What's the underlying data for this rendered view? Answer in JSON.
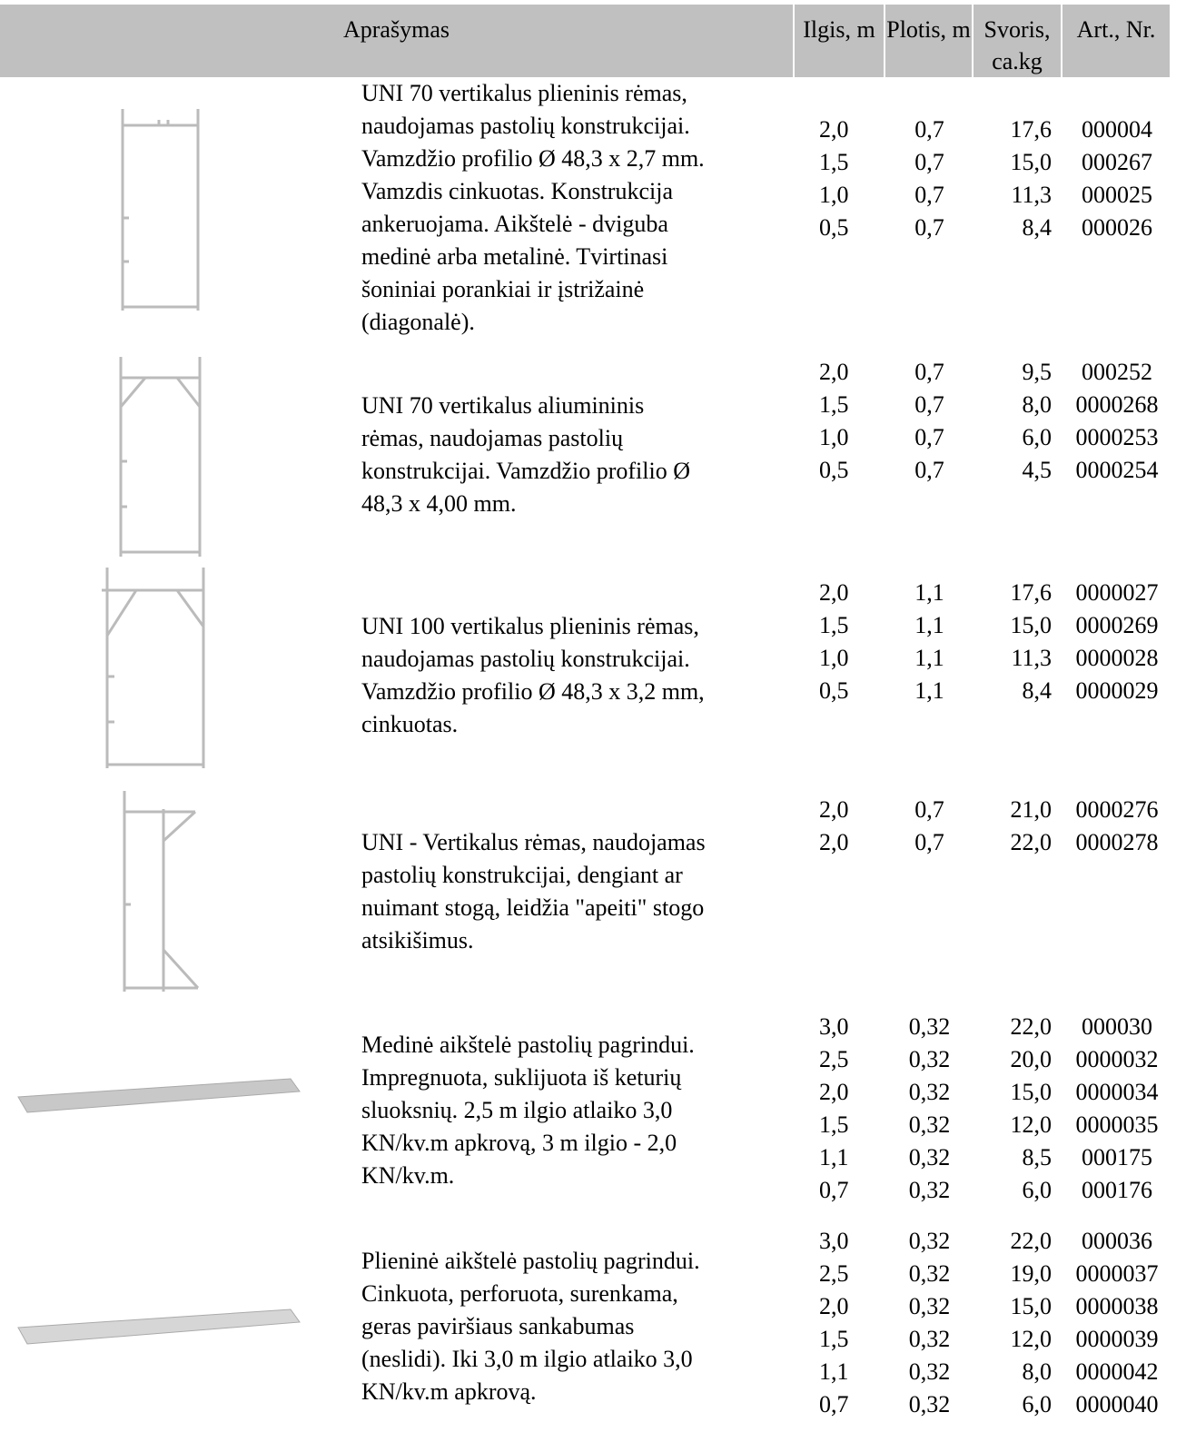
{
  "header": {
    "columns": [
      "Aprašymas",
      "Ilgis, m",
      "Plotis, m",
      "Svoris, ca.kg",
      "Art., Nr."
    ]
  },
  "rows": [
    {
      "description": [
        "UNI 70 vertikalus plieninis rėmas,",
        "naudojamas pastolių konstrukcijai.",
        "Vamzdžio profilio Ø 48,3 x 2,7 mm.",
        "Vamzdis cinkuotas. Konstrukcija",
        "ankeruojama. Aikštelė - dviguba",
        "medinė arba metalinė. Tvirtinasi",
        "šoniniai porankiai ir įstrižainė",
        "(diagonalė)."
      ],
      "items": [
        [
          "2,0",
          "0,7",
          "17,6",
          "000004"
        ],
        [
          "1,5",
          "0,7",
          "15,0",
          "000267"
        ],
        [
          "1,0",
          "0,7",
          "11,3",
          "000025"
        ],
        [
          "0,5",
          "0,7",
          "8,4",
          "000026"
        ]
      ]
    },
    {
      "description": [
        "UNI 70 vertikalus aliumininis",
        "rėmas, naudojamas pastolių",
        "konstrukcijai. Vamzdžio profilio Ø",
        "48,3 x 4,00 mm."
      ],
      "items": [
        [
          "2,0",
          "0,7",
          "9,5",
          "000252"
        ],
        [
          "1,5",
          "0,7",
          "8,0",
          "0000268"
        ],
        [
          "1,0",
          "0,7",
          "6,0",
          "0000253"
        ],
        [
          "0,5",
          "0,7",
          "4,5",
          "0000254"
        ]
      ]
    },
    {
      "description": [
        "UNI 100 vertikalus plieninis rėmas,",
        "naudojamas pastolių konstrukcijai.",
        "Vamzdžio profilio Ø 48,3 x 3,2 mm,",
        "cinkuotas."
      ],
      "items": [
        [
          "2,0",
          "1,1",
          "17,6",
          "0000027"
        ],
        [
          "1,5",
          "1,1",
          "15,0",
          "0000269"
        ],
        [
          "1,0",
          "1,1",
          "11,3",
          "0000028"
        ],
        [
          "0,5",
          "1,1",
          "8,4",
          "0000029"
        ]
      ]
    },
    {
      "description": [
        "UNI - Vertikalus rėmas, naudojamas",
        "pastolių konstrukcijai, dengiant ar",
        "nuimant stogą, leidžia \"apeiti\" stogo",
        "atsikišimus."
      ],
      "items": [
        [
          "2,0",
          "0,7",
          "21,0",
          "0000276"
        ],
        [
          "2,0",
          "0,7",
          "22,0",
          "0000278"
        ]
      ]
    },
    {
      "description": [
        "Medinė aikštelė pastolių pagrindui.",
        "Impregnuota, suklijuota iš keturių",
        "sluoksnių. 2,5 m ilgio atlaiko 3,0",
        "KN/kv.m apkrovą, 3 m ilgio - 2,0",
        "KN/kv.m."
      ],
      "items": [
        [
          "3,0",
          "0,32",
          "22,0",
          "000030"
        ],
        [
          "2,5",
          "0,32",
          "20,0",
          "0000032"
        ],
        [
          "2,0",
          "0,32",
          "15,0",
          "0000034"
        ],
        [
          "1,5",
          "0,32",
          "12,0",
          "0000035"
        ],
        [
          "1,1",
          "0,32",
          "8,5",
          "000175"
        ],
        [
          "0,7",
          "0,32",
          "6,0",
          "000176"
        ]
      ]
    },
    {
      "description": [
        "Plieninė aikštelė pastolių pagrindui.",
        "Cinkuota, perforuota, surenkama,",
        "geras paviršiaus sankabumas",
        "(neslidi). Iki 3,0 m ilgio atlaiko 3,0",
        "KN/kv.m apkrovą."
      ],
      "items": [
        [
          "3,0",
          "0,32",
          "22,0",
          "000036"
        ],
        [
          "2,5",
          "0,32",
          "19,0",
          "0000037"
        ],
        [
          "2,0",
          "0,32",
          "15,0",
          "0000038"
        ],
        [
          "1,5",
          "0,32",
          "12,0",
          "0000039"
        ],
        [
          "1,1",
          "0,32",
          "8,0",
          "0000042"
        ],
        [
          "0,7",
          "0,32",
          "6,0",
          "0000040"
        ]
      ]
    }
  ]
}
